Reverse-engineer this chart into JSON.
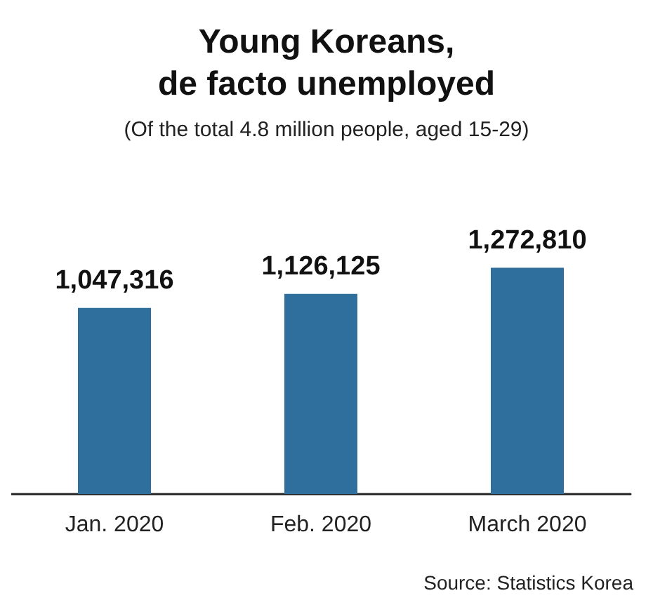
{
  "chart_data": {
    "type": "bar",
    "title": "Young Koreans,\nde facto unemployed",
    "subtitle": "(Of the total 4.8 million people, aged 15-29)",
    "categories": [
      "Jan. 2020",
      "Feb. 2020",
      "March 2020"
    ],
    "values": [
      1047316,
      1126125,
      1272810
    ],
    "color": "#2e6f9e",
    "value_labels": [
      "1,047,316",
      "1,126,125",
      "1,272,810"
    ],
    "tick_labels": "x",
    "annotations": [
      "Source: Statistics Korea"
    ]
  }
}
